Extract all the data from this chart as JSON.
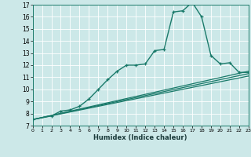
{
  "xlabel": "Humidex (Indice chaleur)",
  "bg_color": "#cce8e8",
  "grid_color": "#ffffff",
  "line_color": "#1a7a6a",
  "xmin": 0,
  "xmax": 23,
  "ymin": 7,
  "ymax": 17,
  "line1_x": [
    0,
    2,
    3,
    4,
    5,
    6,
    7,
    8,
    9,
    10,
    11,
    12,
    13,
    14,
    15,
    16,
    17,
    18,
    19,
    20,
    21,
    22,
    23
  ],
  "line1_y": [
    7.5,
    7.8,
    8.2,
    8.3,
    8.6,
    9.2,
    10.0,
    10.8,
    11.5,
    12.0,
    12.0,
    12.1,
    13.2,
    13.3,
    16.4,
    16.5,
    17.2,
    16.0,
    12.8,
    12.1,
    12.2,
    11.4,
    11.4
  ],
  "line2_x": [
    0,
    23
  ],
  "line2_y": [
    7.5,
    11.5
  ],
  "line3_x": [
    0,
    23
  ],
  "line3_y": [
    7.5,
    11.3
  ],
  "line4_x": [
    0,
    23
  ],
  "line4_y": [
    7.5,
    11.1
  ]
}
